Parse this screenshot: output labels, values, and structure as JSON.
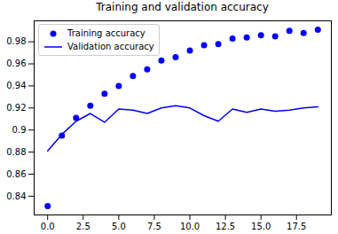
{
  "chart_data": {
    "type": "line",
    "title": "Training and validation accuracy",
    "x": [
      0,
      1,
      2,
      3,
      4,
      5,
      6,
      7,
      8,
      9,
      10,
      11,
      12,
      13,
      14,
      15,
      16,
      17,
      18,
      19
    ],
    "series": [
      {
        "name": "Training accuracy",
        "type": "scatter",
        "color": "blue",
        "marker": "o",
        "values": [
          0.831,
          0.895,
          0.911,
          0.922,
          0.933,
          0.94,
          0.949,
          0.955,
          0.963,
          0.966,
          0.972,
          0.977,
          0.978,
          0.983,
          0.984,
          0.986,
          0.985,
          0.99,
          0.988,
          0.991
        ]
      },
      {
        "name": "Validation accuracy",
        "type": "line",
        "color": "blue",
        "line_style": "solid",
        "values": [
          0.881,
          0.896,
          0.908,
          0.915,
          0.907,
          0.919,
          0.918,
          0.915,
          0.92,
          0.922,
          0.92,
          0.913,
          0.908,
          0.919,
          0.916,
          0.919,
          0.917,
          0.918,
          0.92,
          0.921
        ]
      }
    ],
    "xlim": [
      -0.95,
      19.95
    ],
    "xticks": [
      {
        "value": 0,
        "label": "0.0"
      },
      2.5,
      {
        "value": 5,
        "label": "5.0"
      },
      7.5,
      {
        "value": 10,
        "label": "10.0"
      },
      12.5,
      {
        "value": 15,
        "label": "15.0"
      },
      17.5
    ],
    "ylim": [
      0.823,
      0.999
    ],
    "yticks": [
      0.84,
      0.86,
      0.88,
      0.9,
      0.92,
      0.94,
      0.96,
      0.98
    ],
    "legend": "upper left"
  }
}
